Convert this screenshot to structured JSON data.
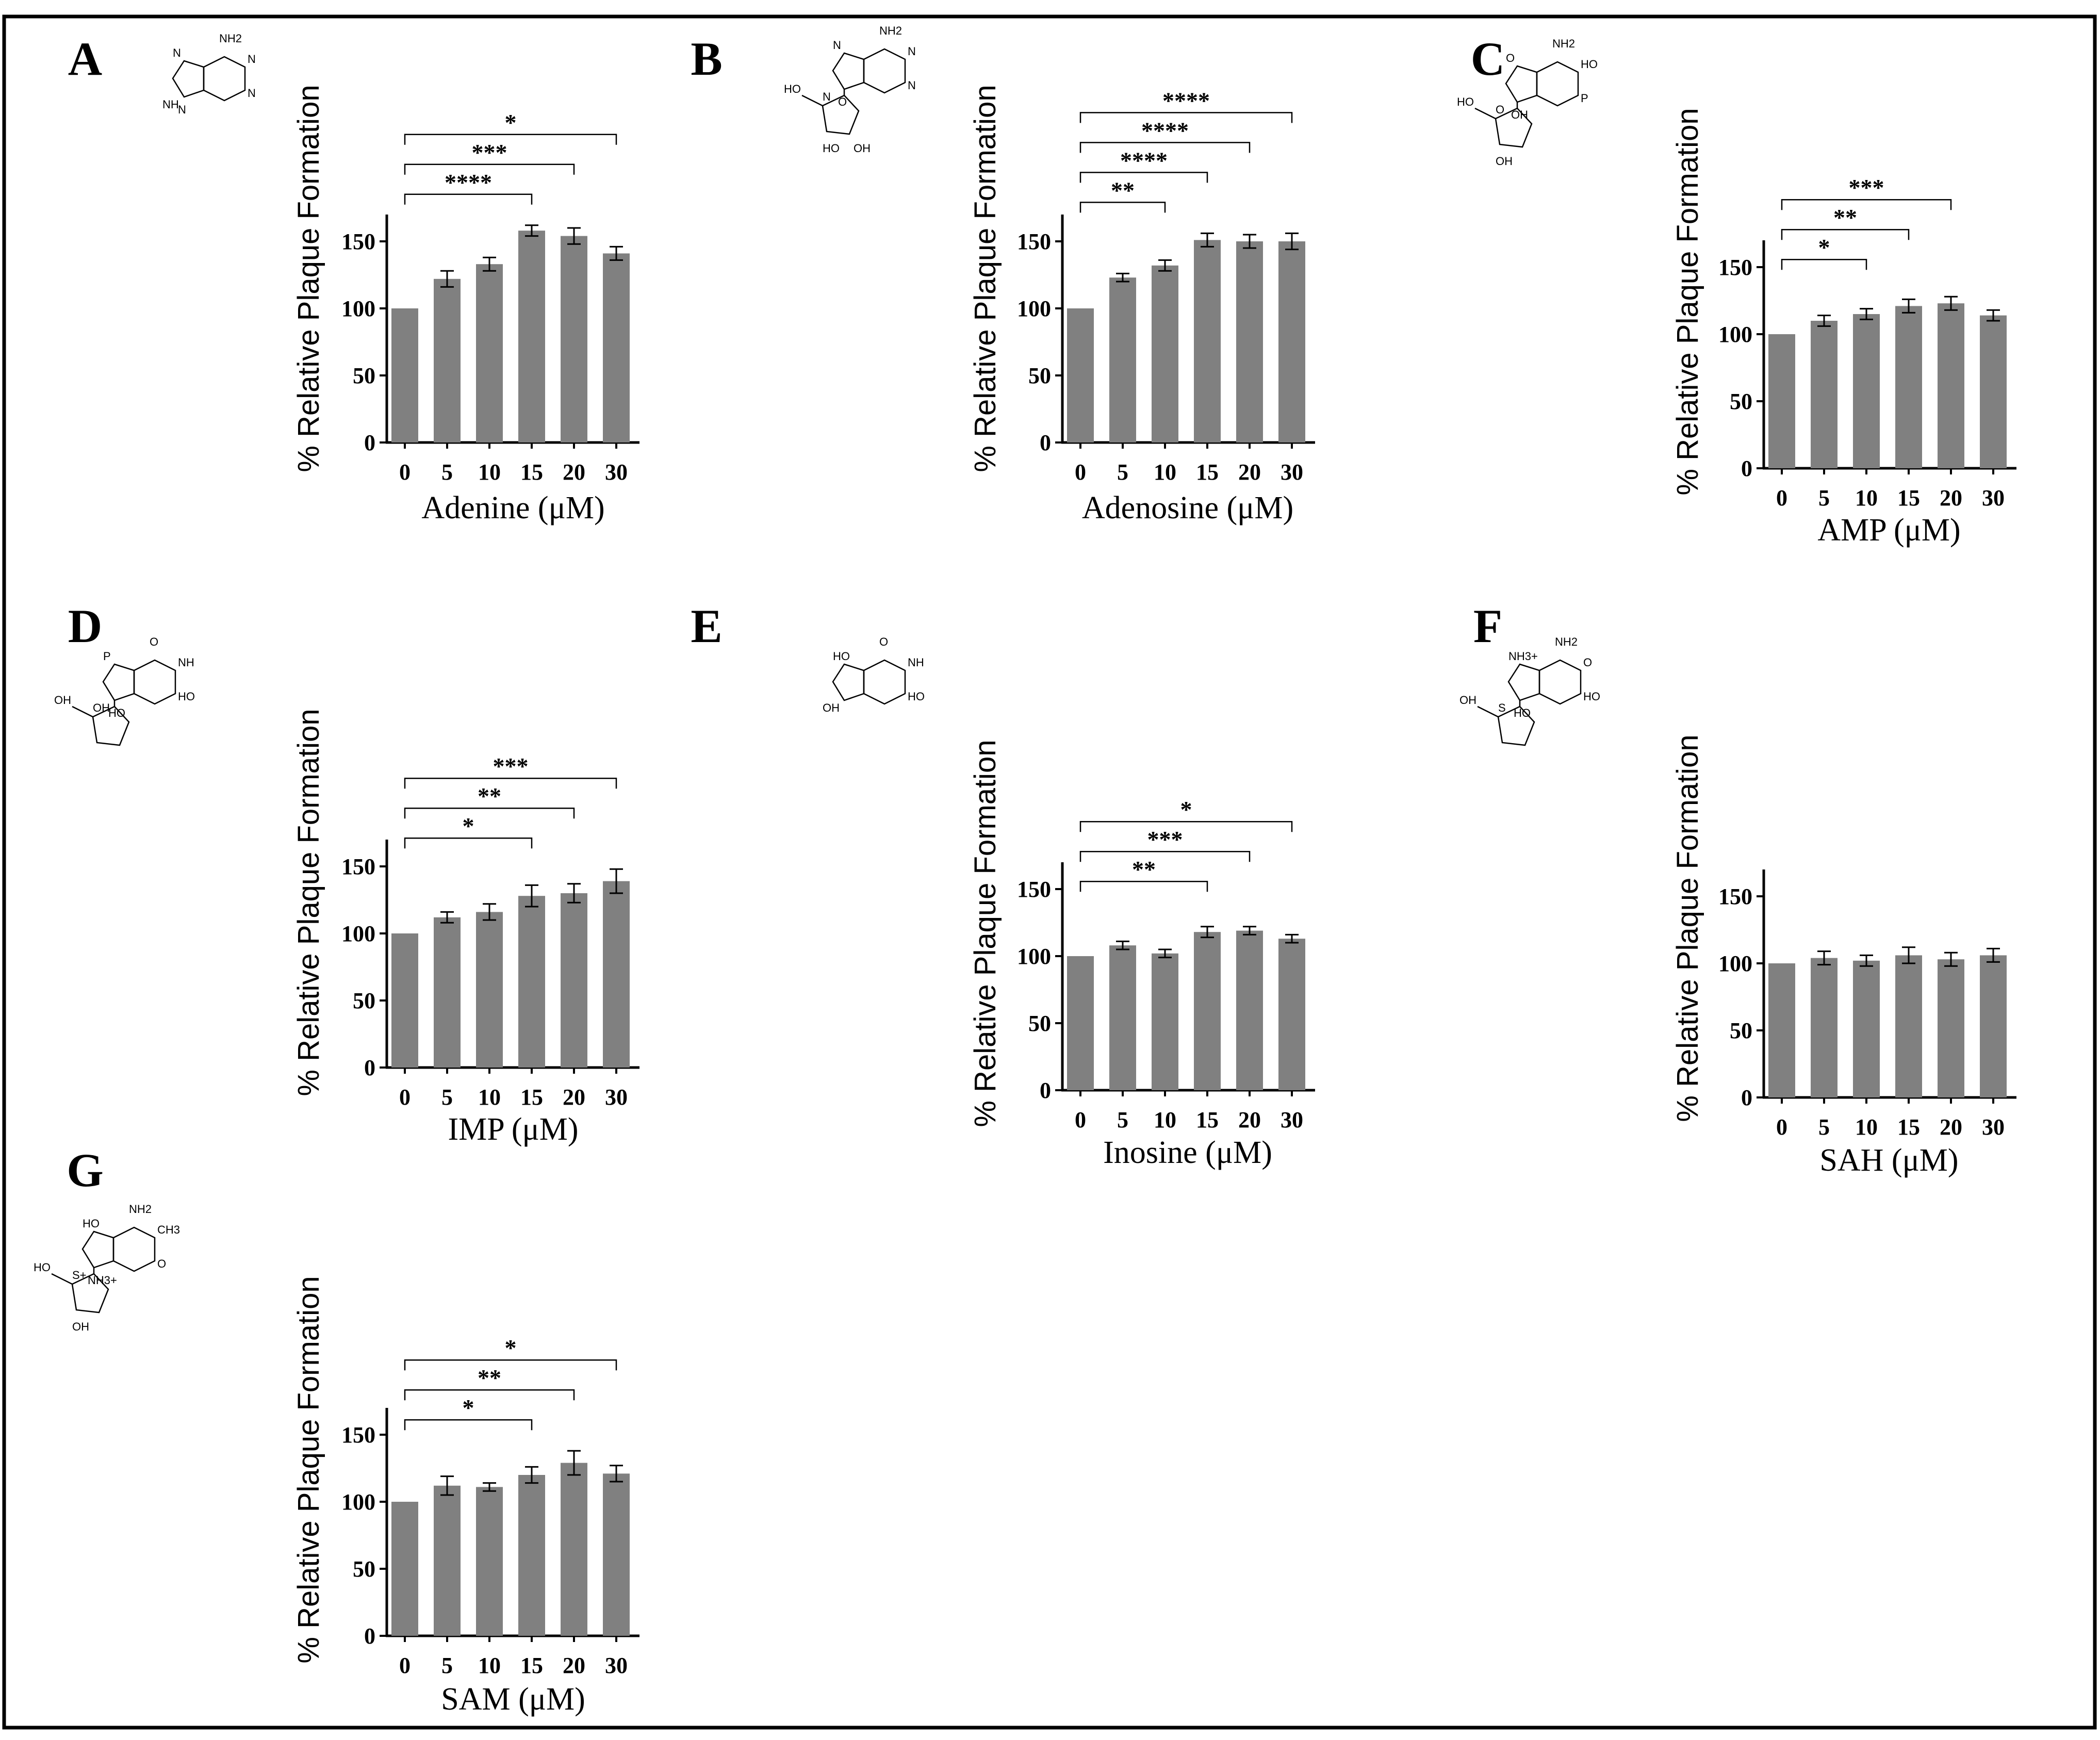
{
  "figure": {
    "y_axis_label": "% Relative Plaque Formation",
    "y_ticks": [
      0,
      50,
      100,
      150
    ],
    "y_range": [
      0,
      170
    ]
  },
  "chart_data": [
    {
      "panel": "A",
      "type": "bar",
      "compound": "Adenine",
      "xlabel": "Adenine (μM)",
      "ylabel": "% Relative Plaque Formation",
      "categories": [
        "0",
        "5",
        "10",
        "15",
        "20",
        "30"
      ],
      "values": [
        100,
        122,
        133,
        158,
        154,
        141
      ],
      "errors": [
        0,
        6,
        5,
        4,
        6,
        5
      ],
      "ylim": [
        0,
        170
      ],
      "significance": [
        {
          "from": "0",
          "to": "15",
          "label": "****"
        },
        {
          "from": "0",
          "to": "20",
          "label": "***"
        },
        {
          "from": "0",
          "to": "30",
          "label": "*"
        }
      ],
      "structure_labels": [
        "NH2",
        "N",
        "N",
        "N",
        "NH",
        "N"
      ]
    },
    {
      "panel": "B",
      "type": "bar",
      "compound": "Adenosine",
      "xlabel": "Adenosine (μM)",
      "ylabel": "% Relative Plaque Formation",
      "categories": [
        "0",
        "5",
        "10",
        "15",
        "20",
        "30"
      ],
      "values": [
        100,
        123,
        132,
        151,
        150,
        150
      ],
      "errors": [
        0,
        3,
        4,
        5,
        5,
        6
      ],
      "ylim": [
        0,
        170
      ],
      "significance": [
        {
          "from": "0",
          "to": "10",
          "label": "**"
        },
        {
          "from": "0",
          "to": "15",
          "label": "****"
        },
        {
          "from": "0",
          "to": "20",
          "label": "****"
        },
        {
          "from": "0",
          "to": "30",
          "label": "****"
        }
      ],
      "structure_labels": [
        "NH2",
        "N",
        "N",
        "N",
        "N",
        "O",
        "HO",
        "HO",
        "OH"
      ]
    },
    {
      "panel": "C",
      "type": "bar",
      "compound": "AMP",
      "xlabel": "AMP (μM)",
      "ylabel": "% Relative Plaque Formation",
      "categories": [
        "0",
        "5",
        "10",
        "15",
        "20",
        "30"
      ],
      "values": [
        100,
        110,
        115,
        121,
        123,
        114
      ],
      "errors": [
        0,
        4,
        4,
        5,
        5,
        4
      ],
      "ylim": [
        0,
        170
      ],
      "significance": [
        {
          "from": "0",
          "to": "10",
          "label": "*"
        },
        {
          "from": "0",
          "to": "15",
          "label": "**"
        },
        {
          "from": "0",
          "to": "20",
          "label": "***"
        }
      ],
      "structure_labels": [
        "NH2",
        "HO",
        "P",
        "O",
        "O",
        "OH",
        "HO",
        "OH"
      ]
    },
    {
      "panel": "D",
      "type": "bar",
      "compound": "IMP",
      "xlabel": "IMP (μM)",
      "ylabel": "% Relative Plaque Formation",
      "categories": [
        "0",
        "5",
        "10",
        "15",
        "20",
        "30"
      ],
      "values": [
        100,
        112,
        116,
        128,
        130,
        139
      ],
      "errors": [
        0,
        4,
        6,
        8,
        7,
        9
      ],
      "ylim": [
        0,
        170
      ],
      "significance": [
        {
          "from": "0",
          "to": "15",
          "label": "*"
        },
        {
          "from": "0",
          "to": "20",
          "label": "**"
        },
        {
          "from": "0",
          "to": "30",
          "label": "***"
        }
      ],
      "structure_labels": [
        "O",
        "NH",
        "HO",
        "P",
        "OH",
        "HO",
        "OH"
      ]
    },
    {
      "panel": "E",
      "type": "bar",
      "compound": "Inosine",
      "xlabel": "Inosine (μM)",
      "ylabel": "% Relative Plaque Formation",
      "categories": [
        "0",
        "5",
        "10",
        "15",
        "20",
        "30"
      ],
      "values": [
        100,
        108,
        102,
        118,
        119,
        113
      ],
      "errors": [
        0,
        3,
        3,
        4,
        3,
        3
      ],
      "ylim": [
        0,
        170
      ],
      "significance": [
        {
          "from": "0",
          "to": "15",
          "label": "**"
        },
        {
          "from": "0",
          "to": "20",
          "label": "***"
        },
        {
          "from": "0",
          "to": "30",
          "label": "*"
        }
      ],
      "structure_labels": [
        "O",
        "NH",
        "HO",
        "HO",
        "OH"
      ]
    },
    {
      "panel": "F",
      "type": "bar",
      "compound": "SAH",
      "xlabel": "SAH (μM)",
      "ylabel": "% Relative Plaque Formation",
      "categories": [
        "0",
        "5",
        "10",
        "15",
        "20",
        "30"
      ],
      "values": [
        100,
        104,
        102,
        106,
        103,
        106
      ],
      "errors": [
        0,
        5,
        4,
        6,
        5,
        5
      ],
      "ylim": [
        0,
        170
      ],
      "significance": [],
      "structure_labels": [
        "NH2",
        "O",
        "HO",
        "NH3+",
        "S",
        "HO",
        "OH"
      ]
    },
    {
      "panel": "G",
      "type": "bar",
      "compound": "SAM",
      "xlabel": "SAM (μM)",
      "ylabel": "% Relative Plaque Formation",
      "categories": [
        "0",
        "5",
        "10",
        "15",
        "20",
        "30"
      ],
      "values": [
        100,
        112,
        111,
        120,
        129,
        121
      ],
      "errors": [
        0,
        7,
        3,
        6,
        9,
        6
      ],
      "ylim": [
        0,
        170
      ],
      "significance": [
        {
          "from": "0",
          "to": "15",
          "label": "*"
        },
        {
          "from": "0",
          "to": "20",
          "label": "**"
        },
        {
          "from": "0",
          "to": "30",
          "label": "*"
        }
      ],
      "structure_labels": [
        "NH2",
        "CH3",
        "O",
        "HO",
        "S+",
        "NH3+",
        "HO",
        "OH"
      ]
    }
  ]
}
